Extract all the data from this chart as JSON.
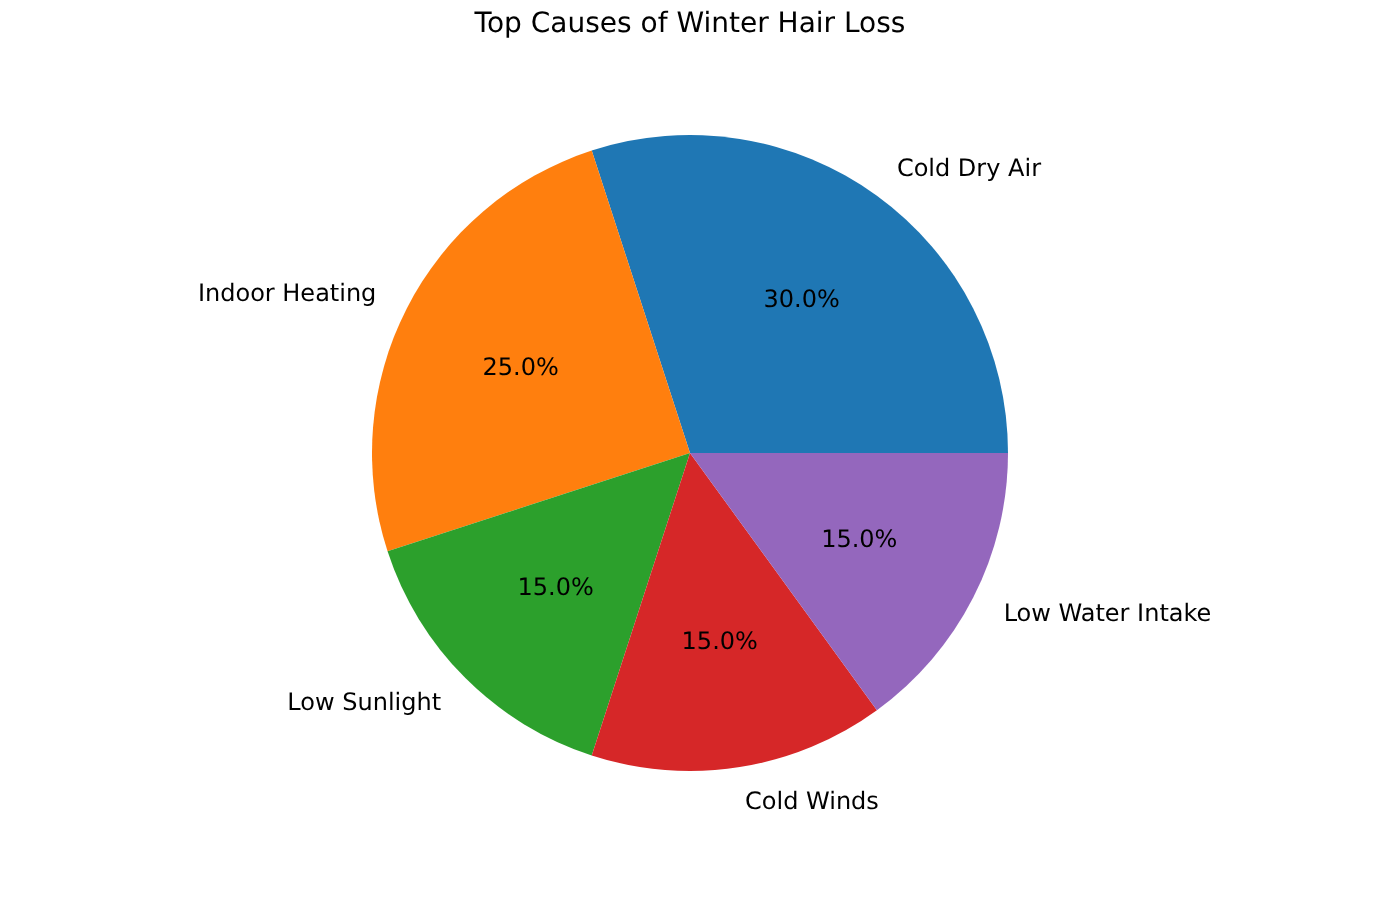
{
  "chart_data": {
    "type": "pie",
    "title": "Top Causes of Winter Hair Loss",
    "categories": [
      "Cold Dry Air",
      "Indoor Heating",
      "Low Sunlight",
      "Cold Winds",
      "Low Water Intake"
    ],
    "values": [
      30,
      25,
      15,
      15,
      15
    ],
    "colors": [
      "#1f77b4",
      "#ff7f0e",
      "#2ca02c",
      "#d62728",
      "#9467bd"
    ],
    "value_labels": [
      "30.0%",
      "25.0%",
      "15.0%",
      "15.0%",
      "15.0%"
    ],
    "legend": false
  }
}
